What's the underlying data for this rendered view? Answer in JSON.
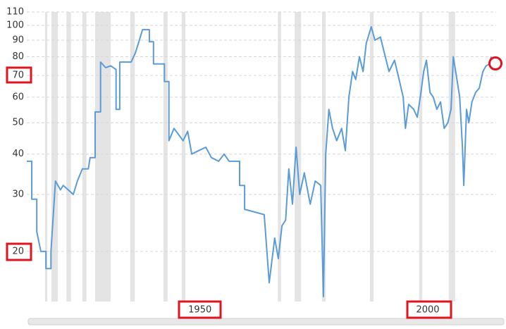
{
  "chart_data": {
    "type": "line",
    "log_scale": true,
    "grid": true,
    "color": "#5b9bd8",
    "shade_color": "#e4e4e4",
    "xlim": [
      1912,
      2015
    ],
    "xticks": [
      1950,
      2000
    ],
    "ylim": [
      14,
      110
    ],
    "yticks": [
      20,
      30,
      40,
      50,
      60,
      70,
      80,
      90,
      100,
      110
    ],
    "recessions": [
      [
        1916.0,
        1916.5
      ],
      [
        1917.4,
        1918.8
      ],
      [
        1920.7,
        1921.7
      ],
      [
        1924.2,
        1925.1
      ],
      [
        1927.0,
        1930.4
      ],
      [
        1934.7,
        1935.7
      ],
      [
        1942.0,
        1942.9
      ],
      [
        1946.0,
        1946.8
      ],
      [
        1967.1,
        1967.8
      ],
      [
        1970.8,
        1972.2
      ],
      [
        1976.8,
        1977.6
      ],
      [
        1987.3,
        1988.1
      ],
      [
        1998.1,
        1998.8
      ],
      [
        2004.6,
        2006.0
      ]
    ],
    "x": [
      1912.0,
      1913.1,
      1913.1,
      1914.2,
      1914.2,
      1915.1,
      1916.2,
      1916.2,
      1917.3,
      1917.3,
      1918.3,
      1919.4,
      1920.0,
      1921.1,
      1922.2,
      1923.1,
      1924.2,
      1925.5,
      1925.9,
      1927.0,
      1927.0,
      1928.2,
      1928.2,
      1929.3,
      1930.4,
      1931.6,
      1931.6,
      1932.4,
      1932.4,
      1933.2,
      1934.9,
      1935.8,
      1936.6,
      1937.4,
      1938.9,
      1938.9,
      1939.8,
      1939.8,
      1942.2,
      1942.2,
      1943.2,
      1943.2,
      1944.3,
      1945.3,
      1946.3,
      1947.3,
      1948.2,
      1949.7,
      1951.3,
      1952.5,
      1954.1,
      1955.3,
      1956.4,
      1958.7,
      1958.7,
      1959.8,
      1959.8,
      1964.1,
      1965.2,
      1966.4,
      1967.2,
      1968.0,
      1968.8,
      1969.5,
      1970.3,
      1971.1,
      1971.9,
      1972.9,
      1974.2,
      1975.3,
      1976.5,
      1977.1,
      1977.6,
      1978.3,
      1979.1,
      1980.0,
      1981.1,
      1981.9,
      1982.7,
      1983.5,
      1984.2,
      1985.0,
      1985.8,
      1986.5,
      1987.6,
      1988.4,
      1989.6,
      1990.4,
      1991.5,
      1992.7,
      1993.5,
      1994.6,
      1995.1,
      1995.8,
      1996.9,
      1997.7,
      1998.5,
      1999.1,
      1999.7,
      2000.5,
      2001.2,
      2002.0,
      2002.8,
      2003.6,
      2004.4,
      2005.1,
      2005.6,
      2006.4,
      2007.0,
      2007.6,
      2007.9,
      2008.5,
      2009.0,
      2009.7,
      2010.5,
      2011.3,
      2012.1,
      2012.8,
      2013.6,
      2013.9
    ],
    "values": [
      38,
      38,
      29,
      29,
      23,
      20,
      20,
      17.7,
      17.7,
      20,
      33,
      31,
      32,
      31,
      30,
      33,
      36,
      36,
      39,
      39,
      54,
      54,
      77,
      74,
      75,
      73,
      55,
      55,
      77,
      77,
      77,
      82,
      89,
      97,
      97,
      89,
      89,
      76,
      76,
      67,
      67,
      44,
      48,
      46,
      44,
      47,
      40,
      41,
      42,
      39,
      38,
      40,
      38,
      38,
      32,
      32,
      27,
      26,
      16,
      22,
      19,
      24,
      25,
      36,
      28,
      42,
      30,
      35,
      28,
      33,
      32,
      14.5,
      40,
      55,
      48,
      44,
      48,
      41,
      60,
      72,
      68,
      80,
      72,
      88,
      99,
      90,
      92,
      83,
      72,
      78,
      70,
      60,
      48,
      57,
      55,
      52,
      62,
      72,
      78,
      62,
      60,
      55,
      58,
      48,
      50,
      55,
      80,
      68,
      60,
      42,
      32,
      55,
      50,
      58,
      62,
      64,
      72,
      75,
      76,
      80
    ]
  }
}
